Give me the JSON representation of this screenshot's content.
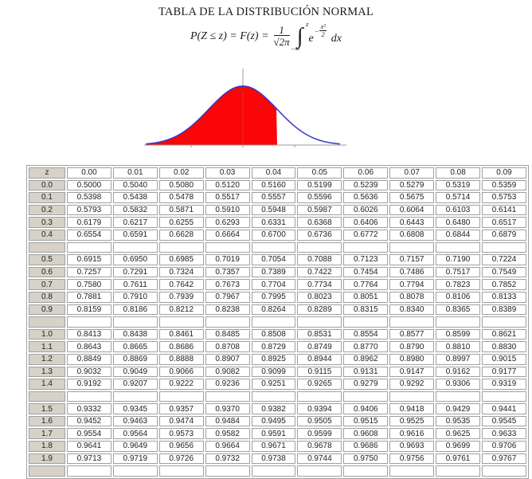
{
  "title": "TABLA DE LA DISTRIBUCIÓN NORMAL",
  "formula": {
    "lhs": "P(Z ≤ z) = F(z) =",
    "frac_numerator": "1",
    "frac_radical": "√",
    "frac_radicand": "2π",
    "integral_glyph": "∫",
    "integral_upper": "z",
    "integral_lower": "−∞",
    "e_base": "e",
    "exp_minus": "−",
    "exp_num": "x²",
    "exp_den": "2",
    "dx": "dx"
  },
  "figure": {
    "type": "standard-normal-density-curve",
    "shaded_side": "left-tail",
    "shade_to_z": 1.0,
    "fill_color": "#fa0606",
    "curve_color": "#3535cc",
    "axis_color": "#999999"
  },
  "table": {
    "headers": [
      "z",
      "0.00",
      "0.01",
      "0.02",
      "0.03",
      "0.04",
      "0.05",
      "0.06",
      "0.07",
      "0.08",
      "0.09"
    ],
    "group_size": 5,
    "rows": [
      {
        "z": "0.0",
        "values": [
          "0.5000",
          "0.5040",
          "0.5080",
          "0.5120",
          "0.5160",
          "0.5199",
          "0.5239",
          "0.5279",
          "0.5319",
          "0.5359"
        ]
      },
      {
        "z": "0.1",
        "values": [
          "0.5398",
          "0.5438",
          "0.5478",
          "0.5517",
          "0.5557",
          "0.5596",
          "0.5636",
          "0.5675",
          "0.5714",
          "0.5753"
        ]
      },
      {
        "z": "0.2",
        "values": [
          "0.5793",
          "0.5832",
          "0.5871",
          "0.5910",
          "0.5948",
          "0.5987",
          "0.6026",
          "0.6064",
          "0.6103",
          "0.6141"
        ]
      },
      {
        "z": "0.3",
        "values": [
          "0.6179",
          "0.6217",
          "0.6255",
          "0.6293",
          "0.6331",
          "0.6368",
          "0.6406",
          "0.6443",
          "0.6480",
          "0.6517"
        ]
      },
      {
        "z": "0.4",
        "values": [
          "0.6554",
          "0.6591",
          "0.6628",
          "0.6664",
          "0.6700",
          "0.6736",
          "0.6772",
          "0.6808",
          "0.6844",
          "0.6879"
        ]
      },
      {
        "z": "0.5",
        "values": [
          "0.6915",
          "0.6950",
          "0.6985",
          "0.7019",
          "0.7054",
          "0.7088",
          "0.7123",
          "0.7157",
          "0.7190",
          "0.7224"
        ]
      },
      {
        "z": "0.6",
        "values": [
          "0.7257",
          "0.7291",
          "0.7324",
          "0.7357",
          "0.7389",
          "0.7422",
          "0.7454",
          "0.7486",
          "0.7517",
          "0.7549"
        ]
      },
      {
        "z": "0.7",
        "values": [
          "0.7580",
          "0.7611",
          "0.7642",
          "0.7673",
          "0.7704",
          "0.7734",
          "0.7764",
          "0.7794",
          "0.7823",
          "0.7852"
        ]
      },
      {
        "z": "0.8",
        "values": [
          "0.7881",
          "0.7910",
          "0.7939",
          "0.7967",
          "0.7995",
          "0.8023",
          "0.8051",
          "0.8078",
          "0.8106",
          "0.8133"
        ]
      },
      {
        "z": "0.9",
        "values": [
          "0.8159",
          "0.8186",
          "0.8212",
          "0.8238",
          "0.8264",
          "0.8289",
          "0.8315",
          "0.8340",
          "0.8365",
          "0.8389"
        ]
      },
      {
        "z": "1.0",
        "values": [
          "0.8413",
          "0.8438",
          "0.8461",
          "0.8485",
          "0.8508",
          "0.8531",
          "0.8554",
          "0.8577",
          "0.8599",
          "0.8621"
        ]
      },
      {
        "z": "1.1",
        "values": [
          "0.8643",
          "0.8665",
          "0.8686",
          "0.8708",
          "0.8729",
          "0.8749",
          "0.8770",
          "0.8790",
          "0.8810",
          "0.8830"
        ]
      },
      {
        "z": "1.2",
        "values": [
          "0.8849",
          "0.8869",
          "0.8888",
          "0.8907",
          "0.8925",
          "0.8944",
          "0.8962",
          "0.8980",
          "0.8997",
          "0.9015"
        ]
      },
      {
        "z": "1.3",
        "values": [
          "0.9032",
          "0.9049",
          "0.9066",
          "0.9082",
          "0.9099",
          "0.9115",
          "0.9131",
          "0.9147",
          "0.9162",
          "0.9177"
        ]
      },
      {
        "z": "1.4",
        "values": [
          "0.9192",
          "0.9207",
          "0.9222",
          "0.9236",
          "0.9251",
          "0.9265",
          "0.9279",
          "0.9292",
          "0.9306",
          "0.9319"
        ]
      },
      {
        "z": "1.5",
        "values": [
          "0.9332",
          "0.9345",
          "0.9357",
          "0.9370",
          "0.9382",
          "0.9394",
          "0.9406",
          "0.9418",
          "0.9429",
          "0.9441"
        ]
      },
      {
        "z": "1.6",
        "values": [
          "0.9452",
          "0.9463",
          "0.9474",
          "0.9484",
          "0.9495",
          "0.9505",
          "0.9515",
          "0.9525",
          "0.9535",
          "0.9545"
        ]
      },
      {
        "z": "1.7",
        "values": [
          "0.9554",
          "0.9564",
          "0.9573",
          "0.9582",
          "0.9591",
          "0.9599",
          "0.9608",
          "0.9616",
          "0.9625",
          "0.9633"
        ]
      },
      {
        "z": "1.8",
        "values": [
          "0.9641",
          "0.9649",
          "0.9656",
          "0.9664",
          "0.9671",
          "0.9678",
          "0.9686",
          "0.9693",
          "0.9699",
          "0.9706"
        ]
      },
      {
        "z": "1.9",
        "values": [
          "0.9713",
          "0.9719",
          "0.9726",
          "0.9732",
          "0.9738",
          "0.9744",
          "0.9750",
          "0.9756",
          "0.9761",
          "0.9767"
        ]
      }
    ]
  }
}
